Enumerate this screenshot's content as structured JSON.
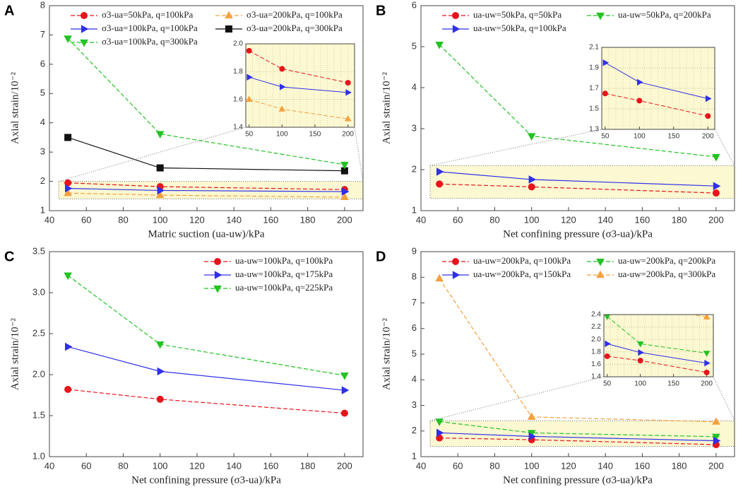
{
  "chart_data": [
    {
      "type": "line",
      "label": "A",
      "xlabel": "Matric suction (ua-uw)/kPa",
      "ylabel": "Axial strain/10⁻²",
      "x": [
        50,
        100,
        200
      ],
      "xlim": [
        40,
        210
      ],
      "xticks": [
        40,
        60,
        80,
        100,
        120,
        140,
        160,
        180,
        200
      ],
      "ylim": [
        1,
        8
      ],
      "yticks": [
        1,
        2,
        3,
        4,
        5,
        6,
        7,
        8
      ],
      "legend": "top",
      "legend_columns": 2,
      "series": [
        {
          "name": "σ3-ua=50kPa, q=100kPa",
          "color": "#e8141b",
          "style": "dashed",
          "marker": "circle",
          "values": [
            1.95,
            1.82,
            1.72
          ]
        },
        {
          "name": "σ3-ua=200kPa, q=100kPa",
          "color": "#f5a040",
          "style": "dashed",
          "marker": "triangle-up",
          "values": [
            1.6,
            1.53,
            1.46
          ]
        },
        {
          "name": "σ3-ua=100kPa, q=100kPa",
          "color": "#3030e8",
          "style": "solid",
          "marker": "triangle-right",
          "values": [
            1.76,
            1.69,
            1.65
          ]
        },
        {
          "name": "σ3-ua=200kPa, q=300kPa",
          "color": "#111111",
          "style": "solid",
          "marker": "square",
          "values": [
            3.5,
            2.46,
            2.36
          ]
        },
        {
          "name": "σ3-ua=100kPa, q=300kPa",
          "color": "#22c322",
          "style": "dashed",
          "marker": "triangle-down",
          "values": [
            6.88,
            3.62,
            2.57
          ]
        }
      ],
      "inset": {
        "xlim": [
          45,
          210
        ],
        "xticks": [
          50,
          100,
          150,
          200
        ],
        "ylim": [
          1.4,
          2.0
        ],
        "yticks": [
          1.4,
          1.6,
          1.8,
          {
            "value": 2.0,
            "label": "2.0"
          }
        ]
      }
    },
    {
      "type": "line",
      "label": "B",
      "xlabel": "Net confining pressure (σ3-ua)/kPa",
      "ylabel": "Axial strain/10⁻²",
      "x": [
        50,
        100,
        200
      ],
      "xlim": [
        40,
        210
      ],
      "xticks": [
        40,
        60,
        80,
        100,
        120,
        140,
        160,
        180,
        200
      ],
      "ylim": [
        1,
        6
      ],
      "yticks": [
        1,
        2,
        3,
        4,
        5,
        6
      ],
      "legend": "top",
      "legend_columns": 2,
      "series": [
        {
          "name": "ua-uw=50kPa, q=50kPa",
          "color": "#e8141b",
          "style": "dashed",
          "marker": "circle",
          "values": [
            1.65,
            1.58,
            1.43
          ]
        },
        {
          "name": "ua-uw=50kPa, q=200kPa",
          "color": "#22c322",
          "style": "dashed",
          "marker": "triangle-down",
          "values": [
            5.05,
            2.82,
            2.31
          ]
        },
        {
          "name": "ua-uw=50kPa, q=100kPa",
          "color": "#3030e8",
          "style": "solid",
          "marker": "triangle-right",
          "values": [
            1.95,
            1.76,
            1.6
          ]
        }
      ],
      "inset": {
        "xlim": [
          45,
          210
        ],
        "xticks": [
          50,
          100,
          150,
          200
        ],
        "ylim": [
          1.3,
          2.1
        ],
        "yticks": [
          1.3,
          1.5,
          1.7,
          1.9,
          2.1
        ]
      }
    },
    {
      "type": "line",
      "label": "C",
      "xlabel": "Net confining pressure (σ3-ua)/kPa",
      "ylabel": "Axial strain/10⁻²",
      "x": [
        50,
        100,
        200
      ],
      "xlim": [
        40,
        210
      ],
      "xticks": [
        40,
        60,
        80,
        100,
        120,
        140,
        160,
        180,
        200
      ],
      "ylim": [
        1,
        3.5
      ],
      "yticks": [
        {
          "value": 1,
          "label": "1.0"
        },
        1.5,
        {
          "value": 2,
          "label": "2.0"
        },
        2.5,
        {
          "value": 3,
          "label": "3.0"
        },
        3.5
      ],
      "legend": "upper right",
      "legend_columns": 1,
      "series": [
        {
          "name": "ua-uw=100kPa, q=100kPa",
          "color": "#e8141b",
          "style": "dashed",
          "marker": "circle",
          "values": [
            1.82,
            1.7,
            1.53
          ]
        },
        {
          "name": "ua-uw=100kPa, q=175kPa",
          "color": "#3030e8",
          "style": "solid",
          "marker": "triangle-right",
          "values": [
            2.34,
            2.04,
            1.81
          ]
        },
        {
          "name": "ua-uw=100kPa, q=225kPa",
          "color": "#22c322",
          "style": "dashed",
          "marker": "triangle-down",
          "values": [
            3.21,
            2.37,
            1.99
          ]
        }
      ]
    },
    {
      "type": "line",
      "label": "D",
      "xlabel": "Net confining pressure (σ3-ua)/kPa",
      "ylabel": "Axial strain/10⁻²",
      "x": [
        50,
        100,
        200
      ],
      "xlim": [
        40,
        210
      ],
      "xticks": [
        40,
        60,
        80,
        100,
        120,
        140,
        160,
        180,
        200
      ],
      "ylim": [
        1,
        9
      ],
      "yticks": [
        1,
        2,
        3,
        4,
        5,
        6,
        7,
        8,
        9
      ],
      "legend": "top",
      "legend_columns": 2,
      "series": [
        {
          "name": "ua-uw=200kPa, q=100kPa",
          "color": "#e8141b",
          "style": "dashed",
          "marker": "circle",
          "values": [
            1.73,
            1.66,
            1.47
          ]
        },
        {
          "name": "ua-uw=200kPa, q=200kPa",
          "color": "#22c322",
          "style": "dashed",
          "marker": "triangle-down",
          "values": [
            2.37,
            1.93,
            1.78
          ]
        },
        {
          "name": "ua-uw=200kPa, q=150kPa",
          "color": "#3030e8",
          "style": "solid",
          "marker": "triangle-right",
          "values": [
            1.93,
            1.79,
            1.62
          ]
        },
        {
          "name": "ua-uw=200kPa, q=300kPa",
          "color": "#f5a040",
          "style": "dashed",
          "marker": "triangle-up",
          "values": [
            7.95,
            2.55,
            2.36
          ]
        }
      ],
      "inset": {
        "xlim": [
          45,
          210
        ],
        "xticks": [
          50,
          100,
          150,
          200
        ],
        "ylim": [
          1.4,
          2.4
        ],
        "yticks": [
          1.4,
          1.6,
          1.8,
          {
            "value": 2.0,
            "label": "2.0"
          },
          2.2,
          2.4
        ]
      }
    }
  ]
}
